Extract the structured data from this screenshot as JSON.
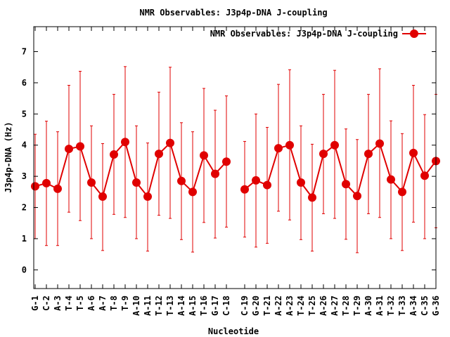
{
  "chart_data": {
    "type": "line",
    "title": "NMR Observables: J3p4p-DNA J-coupling",
    "xlabel": "Nucleotide",
    "ylabel": "J3p4p-DNA (Hz)",
    "ylim": [
      -0.6,
      7.8
    ],
    "yticks": [
      0,
      1,
      2,
      3,
      4,
      5,
      6,
      7
    ],
    "grid": false,
    "legend_position": "top-right",
    "legend_entries": [
      "NMR Observables: J3p4p-DNA J-coupling"
    ],
    "series_color": "#e00000",
    "categories": [
      "G-1",
      "C-2",
      "A-3",
      "T-4",
      "T-5",
      "A-6",
      "A-7",
      "T-8",
      "T-9",
      "A-10",
      "A-11",
      "T-12",
      "T-13",
      "A-14",
      "A-15",
      "T-16",
      "G-17",
      "C-18",
      "C-19",
      "G-20",
      "T-21",
      "A-22",
      "A-23",
      "T-24",
      "T-25",
      "A-26",
      "A-27",
      "T-28",
      "T-29",
      "A-30",
      "A-31",
      "T-32",
      "T-33",
      "A-34",
      "C-35",
      "G-36"
    ],
    "series": [
      {
        "name": "NMR Observables: J3p4p-DNA J-coupling",
        "values": [
          2.68,
          2.78,
          2.6,
          3.88,
          3.96,
          2.8,
          2.35,
          3.7,
          4.1,
          2.8,
          2.35,
          3.72,
          4.07,
          2.85,
          2.5,
          3.67,
          3.08,
          3.47,
          2.58,
          2.87,
          2.72,
          3.9,
          4.0,
          2.8,
          2.32,
          3.72,
          4.0,
          2.75,
          2.37,
          3.72,
          4.05,
          2.9,
          2.5,
          3.75,
          3.02,
          3.49
        ],
        "error_low": [
          1.0,
          0.78,
          0.78,
          1.85,
          1.58,
          1.0,
          0.62,
          1.78,
          1.68,
          1.0,
          0.6,
          1.75,
          1.65,
          0.97,
          0.57,
          1.52,
          1.02,
          1.37,
          1.05,
          0.73,
          0.85,
          1.88,
          1.6,
          0.97,
          0.6,
          1.8,
          1.65,
          0.98,
          0.55,
          1.8,
          1.68,
          1.0,
          0.62,
          1.53,
          1.0,
          1.35
        ],
        "error_high": [
          4.35,
          4.77,
          4.43,
          5.92,
          6.37,
          4.62,
          4.05,
          5.63,
          6.52,
          4.62,
          4.07,
          5.7,
          6.5,
          4.72,
          4.43,
          5.82,
          5.12,
          5.58,
          4.12,
          5.0,
          4.57,
          5.95,
          6.42,
          4.62,
          4.03,
          5.63,
          6.4,
          4.52,
          4.18,
          5.63,
          6.45,
          4.78,
          4.37,
          5.92,
          4.98,
          5.63
        ]
      }
    ]
  }
}
